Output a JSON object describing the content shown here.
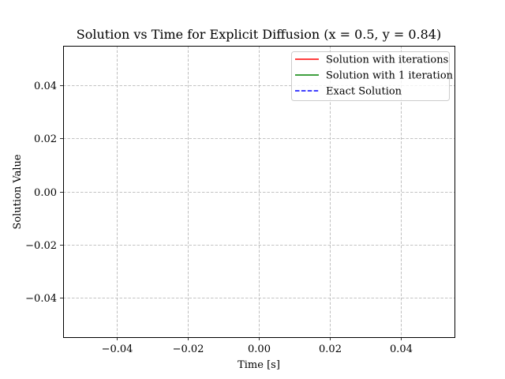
{
  "chart_data": {
    "type": "line",
    "title": "Solution vs Time for Explicit Diffusion (x = 0.5, y = 0.84)",
    "xlabel": "Time [s]",
    "ylabel": "Solution Value",
    "xlim": [
      -0.055,
      0.055
    ],
    "ylim": [
      -0.055,
      0.055
    ],
    "xticks": [
      -0.04,
      -0.02,
      0.0,
      0.02,
      0.04
    ],
    "xtick_labels": [
      "−0.04",
      "−0.02",
      "0.00",
      "0.02",
      "0.04"
    ],
    "yticks": [
      -0.04,
      -0.02,
      0.0,
      0.02,
      0.04
    ],
    "ytick_labels": [
      "−0.04",
      "−0.02",
      "0.00",
      "0.02",
      "0.04"
    ],
    "grid": true,
    "legend_position": "top-right",
    "series": [
      {
        "name": "Solution with iterations",
        "color": "#ff0000",
        "linestyle": "solid",
        "x": [],
        "y": []
      },
      {
        "name": "Solution with 1 iteration",
        "color": "#008000",
        "linestyle": "solid",
        "x": [],
        "y": []
      },
      {
        "name": "Exact Solution",
        "color": "#0000ff",
        "linestyle": "dashed",
        "x": [],
        "y": []
      }
    ]
  }
}
